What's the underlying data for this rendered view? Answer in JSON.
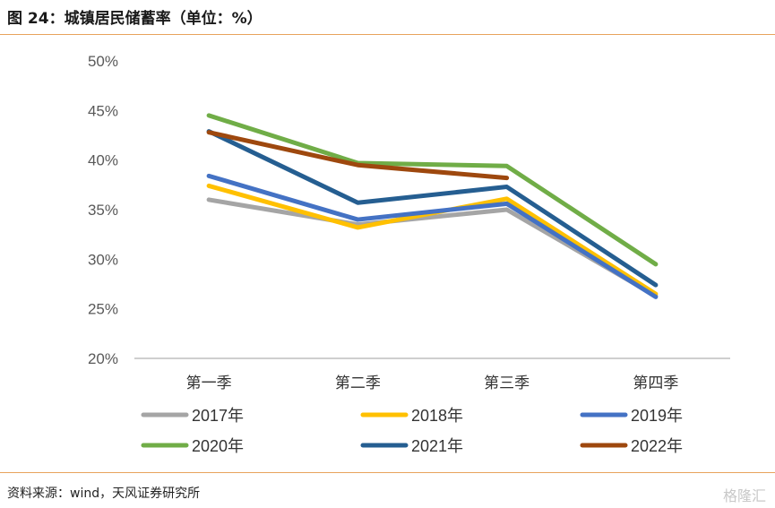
{
  "header": {
    "title": "图 24：城镇居民储蓄率（单位：%）"
  },
  "footer": {
    "source": "资料来源：wind，天风证券研究所",
    "watermark": "格隆汇"
  },
  "colors": {
    "2017": "#a5a5a5",
    "2018": "#ffc000",
    "2019": "#4472c4",
    "2020": "#70ad47",
    "2021": "#255e91",
    "2022": "#9e480e",
    "rule": "#e8a35c",
    "axis": "#bfbfbf"
  },
  "chart_data": {
    "type": "line",
    "title": "城镇居民储蓄率（单位：%）",
    "categories": [
      "第一季",
      "第二季",
      "第三季",
      "第四季"
    ],
    "ylim": [
      20,
      50
    ],
    "yticks": [
      "20%",
      "25%",
      "30%",
      "35%",
      "40%",
      "45%",
      "50%"
    ],
    "ytick_values": [
      20,
      25,
      30,
      35,
      40,
      45,
      50
    ],
    "grid": false,
    "legend_position": "bottom",
    "series": [
      {
        "name": "2017年",
        "color": "#a5a5a5",
        "values": [
          36.0,
          33.5,
          35.0,
          26.3
        ]
      },
      {
        "name": "2018年",
        "color": "#ffc000",
        "values": [
          37.4,
          33.2,
          36.1,
          26.5
        ]
      },
      {
        "name": "2019年",
        "color": "#4472c4",
        "values": [
          38.4,
          34.0,
          35.6,
          26.2
        ]
      },
      {
        "name": "2020年",
        "color": "#70ad47",
        "values": [
          44.5,
          39.7,
          39.4,
          29.5
        ]
      },
      {
        "name": "2021年",
        "color": "#255e91",
        "values": [
          42.9,
          35.7,
          37.3,
          27.4
        ]
      },
      {
        "name": "2022年",
        "color": "#9e480e",
        "values": [
          42.8,
          39.5,
          38.2,
          null
        ]
      }
    ]
  }
}
